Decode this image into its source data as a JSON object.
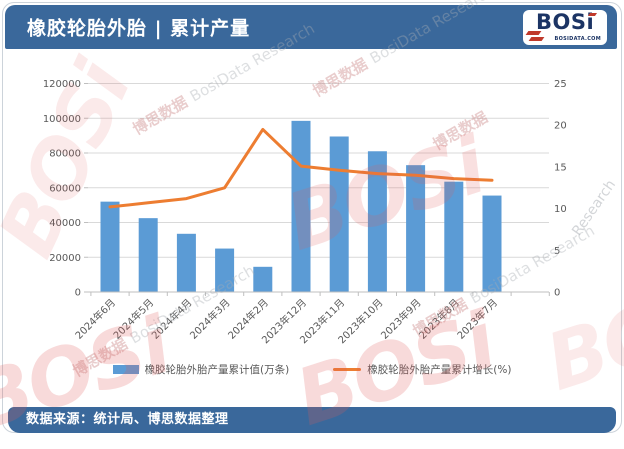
{
  "header": {
    "title": "橡胶轮胎外胎 | 累计产量"
  },
  "logo": {
    "name": "BOSi",
    "name_main": "BOS",
    "name_i": "i",
    "domain": "BOSIDATA.COM"
  },
  "watermark": {
    "zh": "博思数据",
    "en": "BosiData Research",
    "en2": "Research",
    "logo": "BOSi"
  },
  "footer": {
    "source": "数据来源：统计局、博思数据整理"
  },
  "colors": {
    "header_bg": "#3A689B",
    "bar": "#5B9BD5",
    "line": "#ED7D31",
    "grid": "#D9D9D9",
    "axis_line": "#BFBFBF",
    "axis_text": "#595959",
    "logo_navy": "#1C3464",
    "logo_red": "#C0392B"
  },
  "chart_data": {
    "type": "bar",
    "subtype": "combo bar+line, dual y-axis",
    "title": "橡胶轮胎外胎 | 累计产量",
    "categories": [
      "2024年6月",
      "2024年5月",
      "2024年4月",
      "2024年3月",
      "2024年2月",
      "2023年12月",
      "2023年11月",
      "2023年10月",
      "2023年9月",
      "2023年8月",
      "2023年7月"
    ],
    "series": [
      {
        "name": "橡胶轮胎外胎产量累计值(万条)",
        "type": "bar",
        "axis": "left",
        "color": "#5B9BD5",
        "values": [
          52000,
          42500,
          33500,
          25000,
          14500,
          98500,
          89500,
          81000,
          73000,
          63500,
          55500
        ]
      },
      {
        "name": "橡胶轮胎外胎产量累计增长(%)",
        "type": "line",
        "axis": "right",
        "color": "#ED7D31",
        "values": [
          10.2,
          10.7,
          11.2,
          12.5,
          19.5,
          15.1,
          14.6,
          14.2,
          14.0,
          13.6,
          13.4
        ]
      }
    ],
    "left_axis": {
      "min": 0,
      "max": 120000,
      "step": 20000,
      "ticks": [
        "0",
        "20000",
        "40000",
        "60000",
        "80000",
        "100000",
        "120000"
      ]
    },
    "right_axis": {
      "min": 0,
      "max": 25,
      "step": 5,
      "ticks": [
        "0",
        "5",
        "10",
        "15",
        "20",
        "25"
      ]
    },
    "grid": true,
    "legend_position": "bottom"
  }
}
